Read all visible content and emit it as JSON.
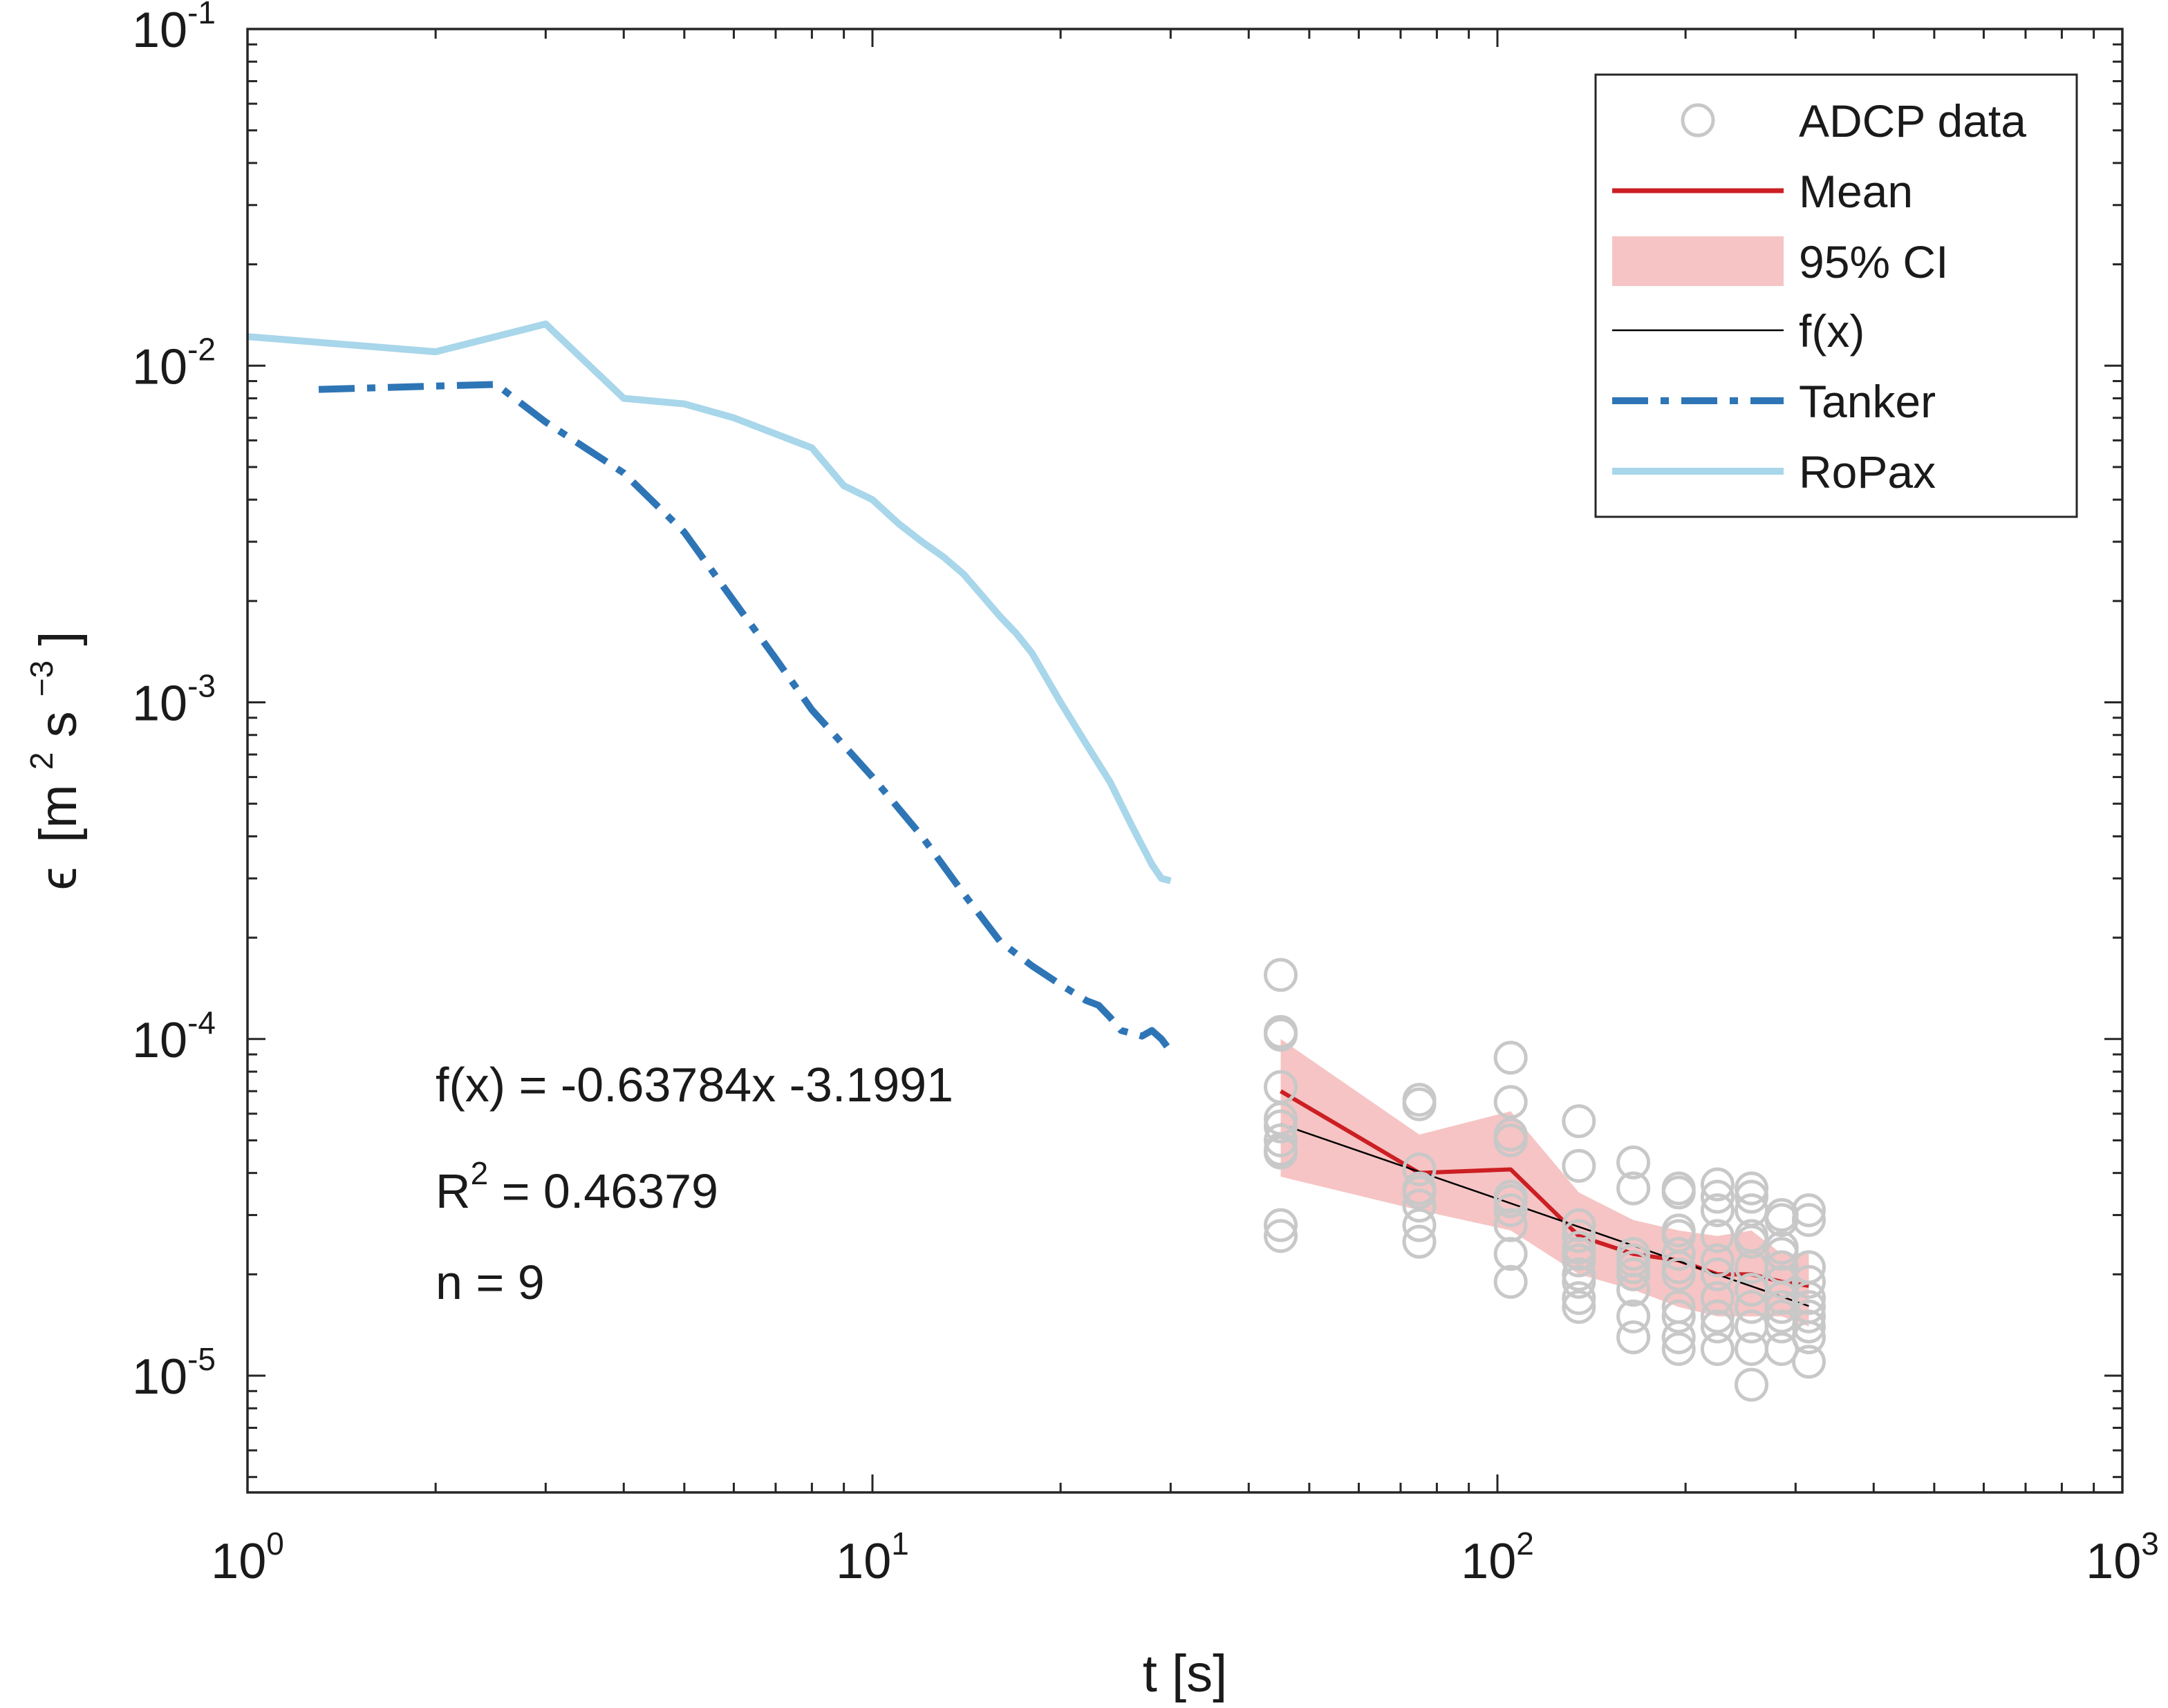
{
  "chart_data": {
    "type": "line",
    "title": "",
    "xlabel": "t [s]",
    "ylabel": {
      "symbol": "ϵ",
      "open": "[m",
      "exp1": "2",
      "mid": " s",
      "exp2": "−3",
      "close": "]"
    },
    "xscale": "log",
    "yscale": "log",
    "xlim": [
      1,
      1000
    ],
    "ylim": [
      4.5e-06,
      0.1
    ],
    "x_ticks": [
      {
        "value": 1,
        "base": "10",
        "exp": "0"
      },
      {
        "value": 10,
        "base": "10",
        "exp": "1"
      },
      {
        "value": 100,
        "base": "10",
        "exp": "2"
      },
      {
        "value": 1000,
        "base": "10",
        "exp": "3"
      }
    ],
    "y_ticks": [
      {
        "value": 0.1,
        "base": "10",
        "exp": "-1"
      },
      {
        "value": 0.01,
        "base": "10",
        "exp": "-2"
      },
      {
        "value": 0.001,
        "base": "10",
        "exp": "-3"
      },
      {
        "value": 0.0001,
        "base": "10",
        "exp": "-4"
      },
      {
        "value": 1e-05,
        "base": "10",
        "exp": "-5"
      }
    ],
    "legend": {
      "position": "top-right",
      "entries": [
        {
          "label": "ADCP data",
          "style": "marker"
        },
        {
          "label": "Mean",
          "style": "line"
        },
        {
          "label": "95% CI",
          "style": "patch"
        },
        {
          "label": "f(x)",
          "style": "thin-line"
        },
        {
          "label": "Tanker",
          "style": "dashdot"
        },
        {
          "label": "RoPax",
          "style": "line"
        }
      ]
    },
    "colors": {
      "adcp": "#c8c8c8",
      "mean": "#cc1f24",
      "ci": "#f6c4c4",
      "fit": "#000000",
      "tanker": "#2e75b6",
      "ropax": "#a8d6ea",
      "axis": "#262626"
    },
    "series": [
      {
        "name": "RoPax",
        "x": [
          1,
          2,
          3,
          4,
          5,
          6,
          8,
          9,
          10,
          11,
          12,
          13,
          14,
          16,
          17,
          18,
          20,
          22,
          24,
          26,
          28,
          29,
          30
        ],
        "y": [
          0.0122,
          0.011,
          0.0133,
          0.008,
          0.0077,
          0.007,
          0.0057,
          0.0044,
          0.004,
          0.0034,
          0.003,
          0.0027,
          0.0024,
          0.0018,
          0.0016,
          0.0014,
          0.001,
          0.00075,
          0.00058,
          0.00043,
          0.00033,
          0.0003,
          0.000295
        ]
      },
      {
        "name": "Tanker",
        "x": [
          1.3,
          2,
          2.5,
          3,
          4,
          5,
          6,
          7,
          8,
          10,
          12,
          14,
          16,
          18,
          20,
          22,
          23,
          24,
          25,
          27,
          28,
          29,
          30
        ],
        "y": [
          0.0085,
          0.0087,
          0.0088,
          0.0068,
          0.0048,
          0.0032,
          0.002,
          0.00135,
          0.00095,
          0.0006,
          0.0004,
          0.00027,
          0.000195,
          0.000165,
          0.000145,
          0.00013,
          0.000126,
          0.000116,
          0.000106,
          0.000102,
          0.000106,
          0.0001,
          9.2e-05
        ]
      },
      {
        "name": "Mean",
        "x": [
          45,
          75,
          105,
          135,
          165,
          195,
          225,
          255,
          285,
          315
        ],
        "y": [
          7e-05,
          4e-05,
          4.1e-05,
          2.6e-05,
          2.3e-05,
          2.2e-05,
          2e-05,
          2e-05,
          1.9e-05,
          1.85e-05
        ]
      },
      {
        "name": "95% CI",
        "x": [
          45,
          75,
          105,
          135,
          165,
          195,
          225,
          255,
          285,
          315
        ],
        "upper": [
          0.0001,
          5.2e-05,
          6.1e-05,
          3.5e-05,
          2.9e-05,
          2.7e-05,
          2.6e-05,
          2.7e-05,
          2.3e-05,
          2.3e-05
        ],
        "lower": [
          3.9e-05,
          3.1e-05,
          2.7e-05,
          2e-05,
          1.8e-05,
          1.6e-05,
          1.5e-05,
          1.5e-05,
          1.5e-05,
          1.4e-05
        ]
      },
      {
        "name": "f(x)",
        "x": [
          45,
          315
        ],
        "y": [
          5.59e-05,
          1.61e-05
        ]
      },
      {
        "name": "ADCP data",
        "points": [
          [
            45,
            0.000155
          ],
          [
            45,
            0.000105
          ],
          [
            45,
            0.000103
          ],
          [
            45,
            7.2e-05
          ],
          [
            45,
            5.8e-05
          ],
          [
            45,
            5.5e-05
          ],
          [
            45,
            5e-05
          ],
          [
            45,
            4.7e-05
          ],
          [
            45,
            4.6e-05
          ],
          [
            45,
            2.8e-05
          ],
          [
            45,
            2.6e-05
          ],
          [
            75,
            6.6e-05
          ],
          [
            75,
            6.4e-05
          ],
          [
            75,
            4.1e-05
          ],
          [
            75,
            3.6e-05
          ],
          [
            75,
            3.5e-05
          ],
          [
            75,
            3.2e-05
          ],
          [
            75,
            2.8e-05
          ],
          [
            75,
            2.5e-05
          ],
          [
            105,
            8.8e-05
          ],
          [
            105,
            6.5e-05
          ],
          [
            105,
            5.2e-05
          ],
          [
            105,
            5e-05
          ],
          [
            105,
            3.4e-05
          ],
          [
            105,
            3.3e-05
          ],
          [
            105,
            3.1e-05
          ],
          [
            105,
            2.8e-05
          ],
          [
            105,
            2.3e-05
          ],
          [
            105,
            1.9e-05
          ],
          [
            135,
            5.7e-05
          ],
          [
            135,
            4.2e-05
          ],
          [
            135,
            2.8e-05
          ],
          [
            135,
            2.6e-05
          ],
          [
            135,
            2.4e-05
          ],
          [
            135,
            2.3e-05
          ],
          [
            135,
            2.2e-05
          ],
          [
            135,
            2e-05
          ],
          [
            135,
            1.9e-05
          ],
          [
            135,
            1.7e-05
          ],
          [
            135,
            1.6e-05
          ],
          [
            165,
            4.3e-05
          ],
          [
            165,
            3.6e-05
          ],
          [
            165,
            2.3e-05
          ],
          [
            165,
            2.2e-05
          ],
          [
            165,
            2.1e-05
          ],
          [
            165,
            2e-05
          ],
          [
            165,
            1.8e-05
          ],
          [
            165,
            1.5e-05
          ],
          [
            165,
            1.3e-05
          ],
          [
            195,
            3.6e-05
          ],
          [
            195,
            3.5e-05
          ],
          [
            195,
            2.7e-05
          ],
          [
            195,
            2.6e-05
          ],
          [
            195,
            2.3e-05
          ],
          [
            195,
            2.1e-05
          ],
          [
            195,
            2e-05
          ],
          [
            195,
            1.6e-05
          ],
          [
            195,
            1.5e-05
          ],
          [
            195,
            1.3e-05
          ],
          [
            195,
            1.2e-05
          ],
          [
            225,
            3.7e-05
          ],
          [
            225,
            3.4e-05
          ],
          [
            225,
            3.1e-05
          ],
          [
            225,
            2.6e-05
          ],
          [
            225,
            2.2e-05
          ],
          [
            225,
            2e-05
          ],
          [
            225,
            1.7e-05
          ],
          [
            225,
            1.5e-05
          ],
          [
            225,
            1.4e-05
          ],
          [
            225,
            1.2e-05
          ],
          [
            255,
            3.6e-05
          ],
          [
            255,
            3.4e-05
          ],
          [
            255,
            3.1e-05
          ],
          [
            255,
            2.6e-05
          ],
          [
            255,
            2.5e-05
          ],
          [
            255,
            2.1e-05
          ],
          [
            255,
            1.8e-05
          ],
          [
            255,
            1.6e-05
          ],
          [
            255,
            1.4e-05
          ],
          [
            255,
            1.2e-05
          ],
          [
            255,
            9.4e-06
          ],
          [
            285,
            3e-05
          ],
          [
            285,
            2.9e-05
          ],
          [
            285,
            2.4e-05
          ],
          [
            285,
            2.3e-05
          ],
          [
            285,
            2.1e-05
          ],
          [
            285,
            1.9e-05
          ],
          [
            285,
            1.7e-05
          ],
          [
            285,
            1.6e-05
          ],
          [
            285,
            1.5e-05
          ],
          [
            285,
            1.4e-05
          ],
          [
            285,
            1.2e-05
          ],
          [
            315,
            3.1e-05
          ],
          [
            315,
            2.9e-05
          ],
          [
            315,
            2.1e-05
          ],
          [
            315,
            1.9e-05
          ],
          [
            315,
            1.7e-05
          ],
          [
            315,
            1.6e-05
          ],
          [
            315,
            1.5e-05
          ],
          [
            315,
            1.4e-05
          ],
          [
            315,
            1.3e-05
          ],
          [
            315,
            1.1e-05
          ]
        ]
      }
    ],
    "annotations": {
      "equation": "f(x) = -0.63784x -3.1991",
      "r2_prefix": "R",
      "r2_exp": "2",
      "r2_value": " = 0.46379",
      "n": "n = 9"
    }
  }
}
